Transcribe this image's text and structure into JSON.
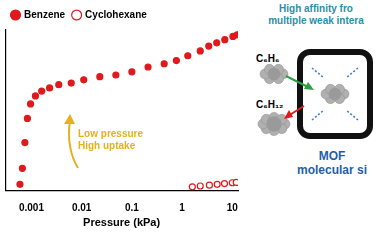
{
  "chart_data": {
    "type": "scatter",
    "x_label": "Pressure (kPa)",
    "log": "x",
    "xlim": [
      0.0003,
      13
    ],
    "xticks": [
      0.001,
      0.01,
      0.1,
      1,
      10
    ],
    "ylim": [
      0,
      100
    ],
    "tick_labels": "x",
    "grid": false,
    "legend": "upper left",
    "annotation": {
      "lines": [
        "Low pressure",
        "High uptake"
      ],
      "color": "#e8b020"
    },
    "series": [
      {
        "name": "Benzene",
        "color": "#e0191c",
        "marker": "circle",
        "x": [
          0.00059,
          0.00066,
          0.00074,
          0.00083,
          0.00096,
          0.0012,
          0.0016,
          0.0023,
          0.0035,
          0.0062,
          0.011,
          0.023,
          0.048,
          0.1,
          0.21,
          0.44,
          0.77,
          1.3,
          2.3,
          3.4,
          4.9,
          7.1,
          10.3,
          12.5
        ],
        "values": [
          4,
          14,
          30,
          45,
          54,
          59,
          62,
          64,
          66,
          67,
          69,
          71,
          72,
          74,
          77,
          79,
          81,
          84,
          87,
          90,
          92,
          94,
          96,
          97
        ]
      },
      {
        "name": "Cyclohexane",
        "color": "#e0191c",
        "marker": "open-circle",
        "x": [
          1.6,
          2.3,
          3.5,
          5,
          7,
          10,
          12
        ],
        "values": [
          2.5,
          3,
          3.5,
          4,
          4.5,
          5,
          5.2
        ]
      }
    ]
  },
  "diagram": {
    "title_lines": [
      "High affinity fro",
      "multiple weak intera"
    ],
    "molecules": [
      "C₆H₆",
      "C₆H₁₂"
    ],
    "label_lines": [
      "MOF",
      "molecular si"
    ]
  }
}
